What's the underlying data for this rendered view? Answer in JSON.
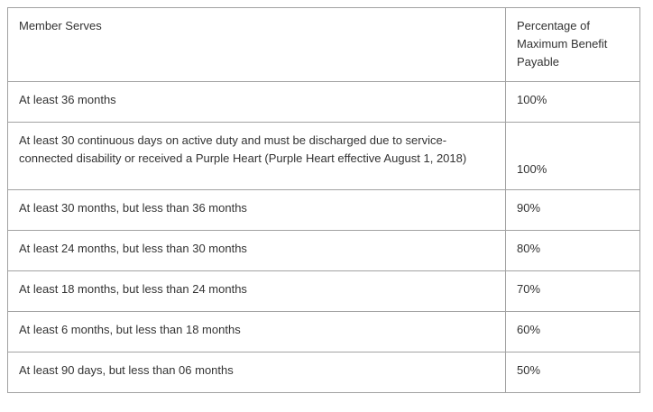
{
  "table": {
    "columns": [
      {
        "label": "Member Serves"
      },
      {
        "label": "Percentage of Maximum Benefit Payable"
      }
    ],
    "rows": [
      {
        "service": "At least 36 months",
        "percentage": "100%"
      },
      {
        "service": "At least 30 continuous days on active duty and must be discharged due to service-connected disability or received a Purple Heart (Purple Heart effective August 1, 2018)",
        "percentage": "100%",
        "tall": true,
        "valign": "bottom"
      },
      {
        "service": "At least 30 months, but less than 36 months",
        "percentage": "90%"
      },
      {
        "service": "At least 24 months, but less than 30 months",
        "percentage": "80%"
      },
      {
        "service": "At least 18 months, but less than 24 months",
        "percentage": "70%"
      },
      {
        "service": "At least 6 months, but less than 18 months",
        "percentage": "60%"
      },
      {
        "service": "At least 90 days, but less than 06 months",
        "percentage": "50%"
      }
    ],
    "colors": {
      "border": "#a2a2a2",
      "text": "#333333",
      "background": "#ffffff"
    }
  }
}
